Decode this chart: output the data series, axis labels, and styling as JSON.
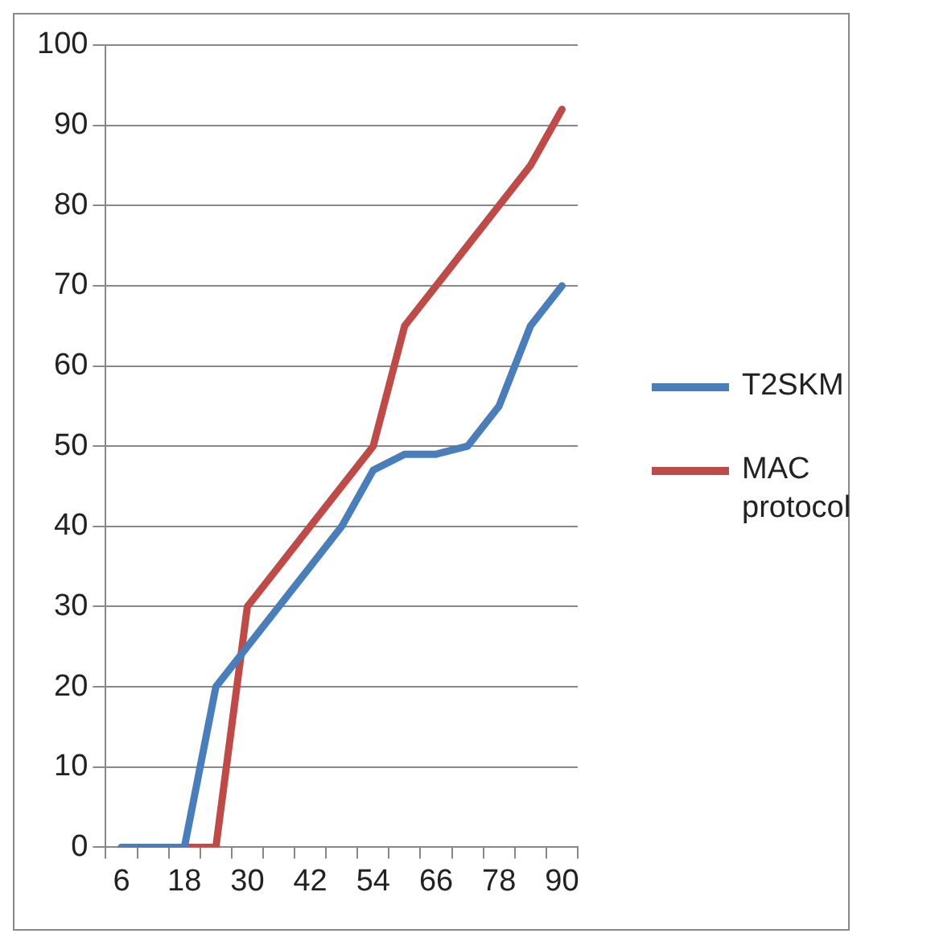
{
  "chart_data": {
    "type": "line",
    "categories": [
      "6",
      null,
      "18",
      null,
      "30",
      null,
      "42",
      null,
      "54",
      null,
      "66",
      null,
      "78",
      null,
      "90"
    ],
    "series": [
      {
        "name": "T2SKM",
        "color": "#4a7ebb",
        "values": [
          0,
          0,
          0,
          20,
          25,
          30,
          35,
          40,
          47,
          49,
          49,
          50,
          55,
          65,
          70
        ]
      },
      {
        "name": "MAC protocol",
        "color": "#be4b48",
        "values": [
          0,
          0,
          0,
          0,
          30,
          35,
          40,
          45,
          50,
          65,
          70,
          75,
          80,
          85,
          92
        ]
      }
    ],
    "ylim": [
      0,
      100
    ],
    "yticks": [
      0,
      10,
      20,
      30,
      40,
      50,
      60,
      70,
      80,
      90,
      100
    ],
    "grid": "y",
    "legend": "right",
    "marker": "none",
    "line_style": "solid"
  }
}
